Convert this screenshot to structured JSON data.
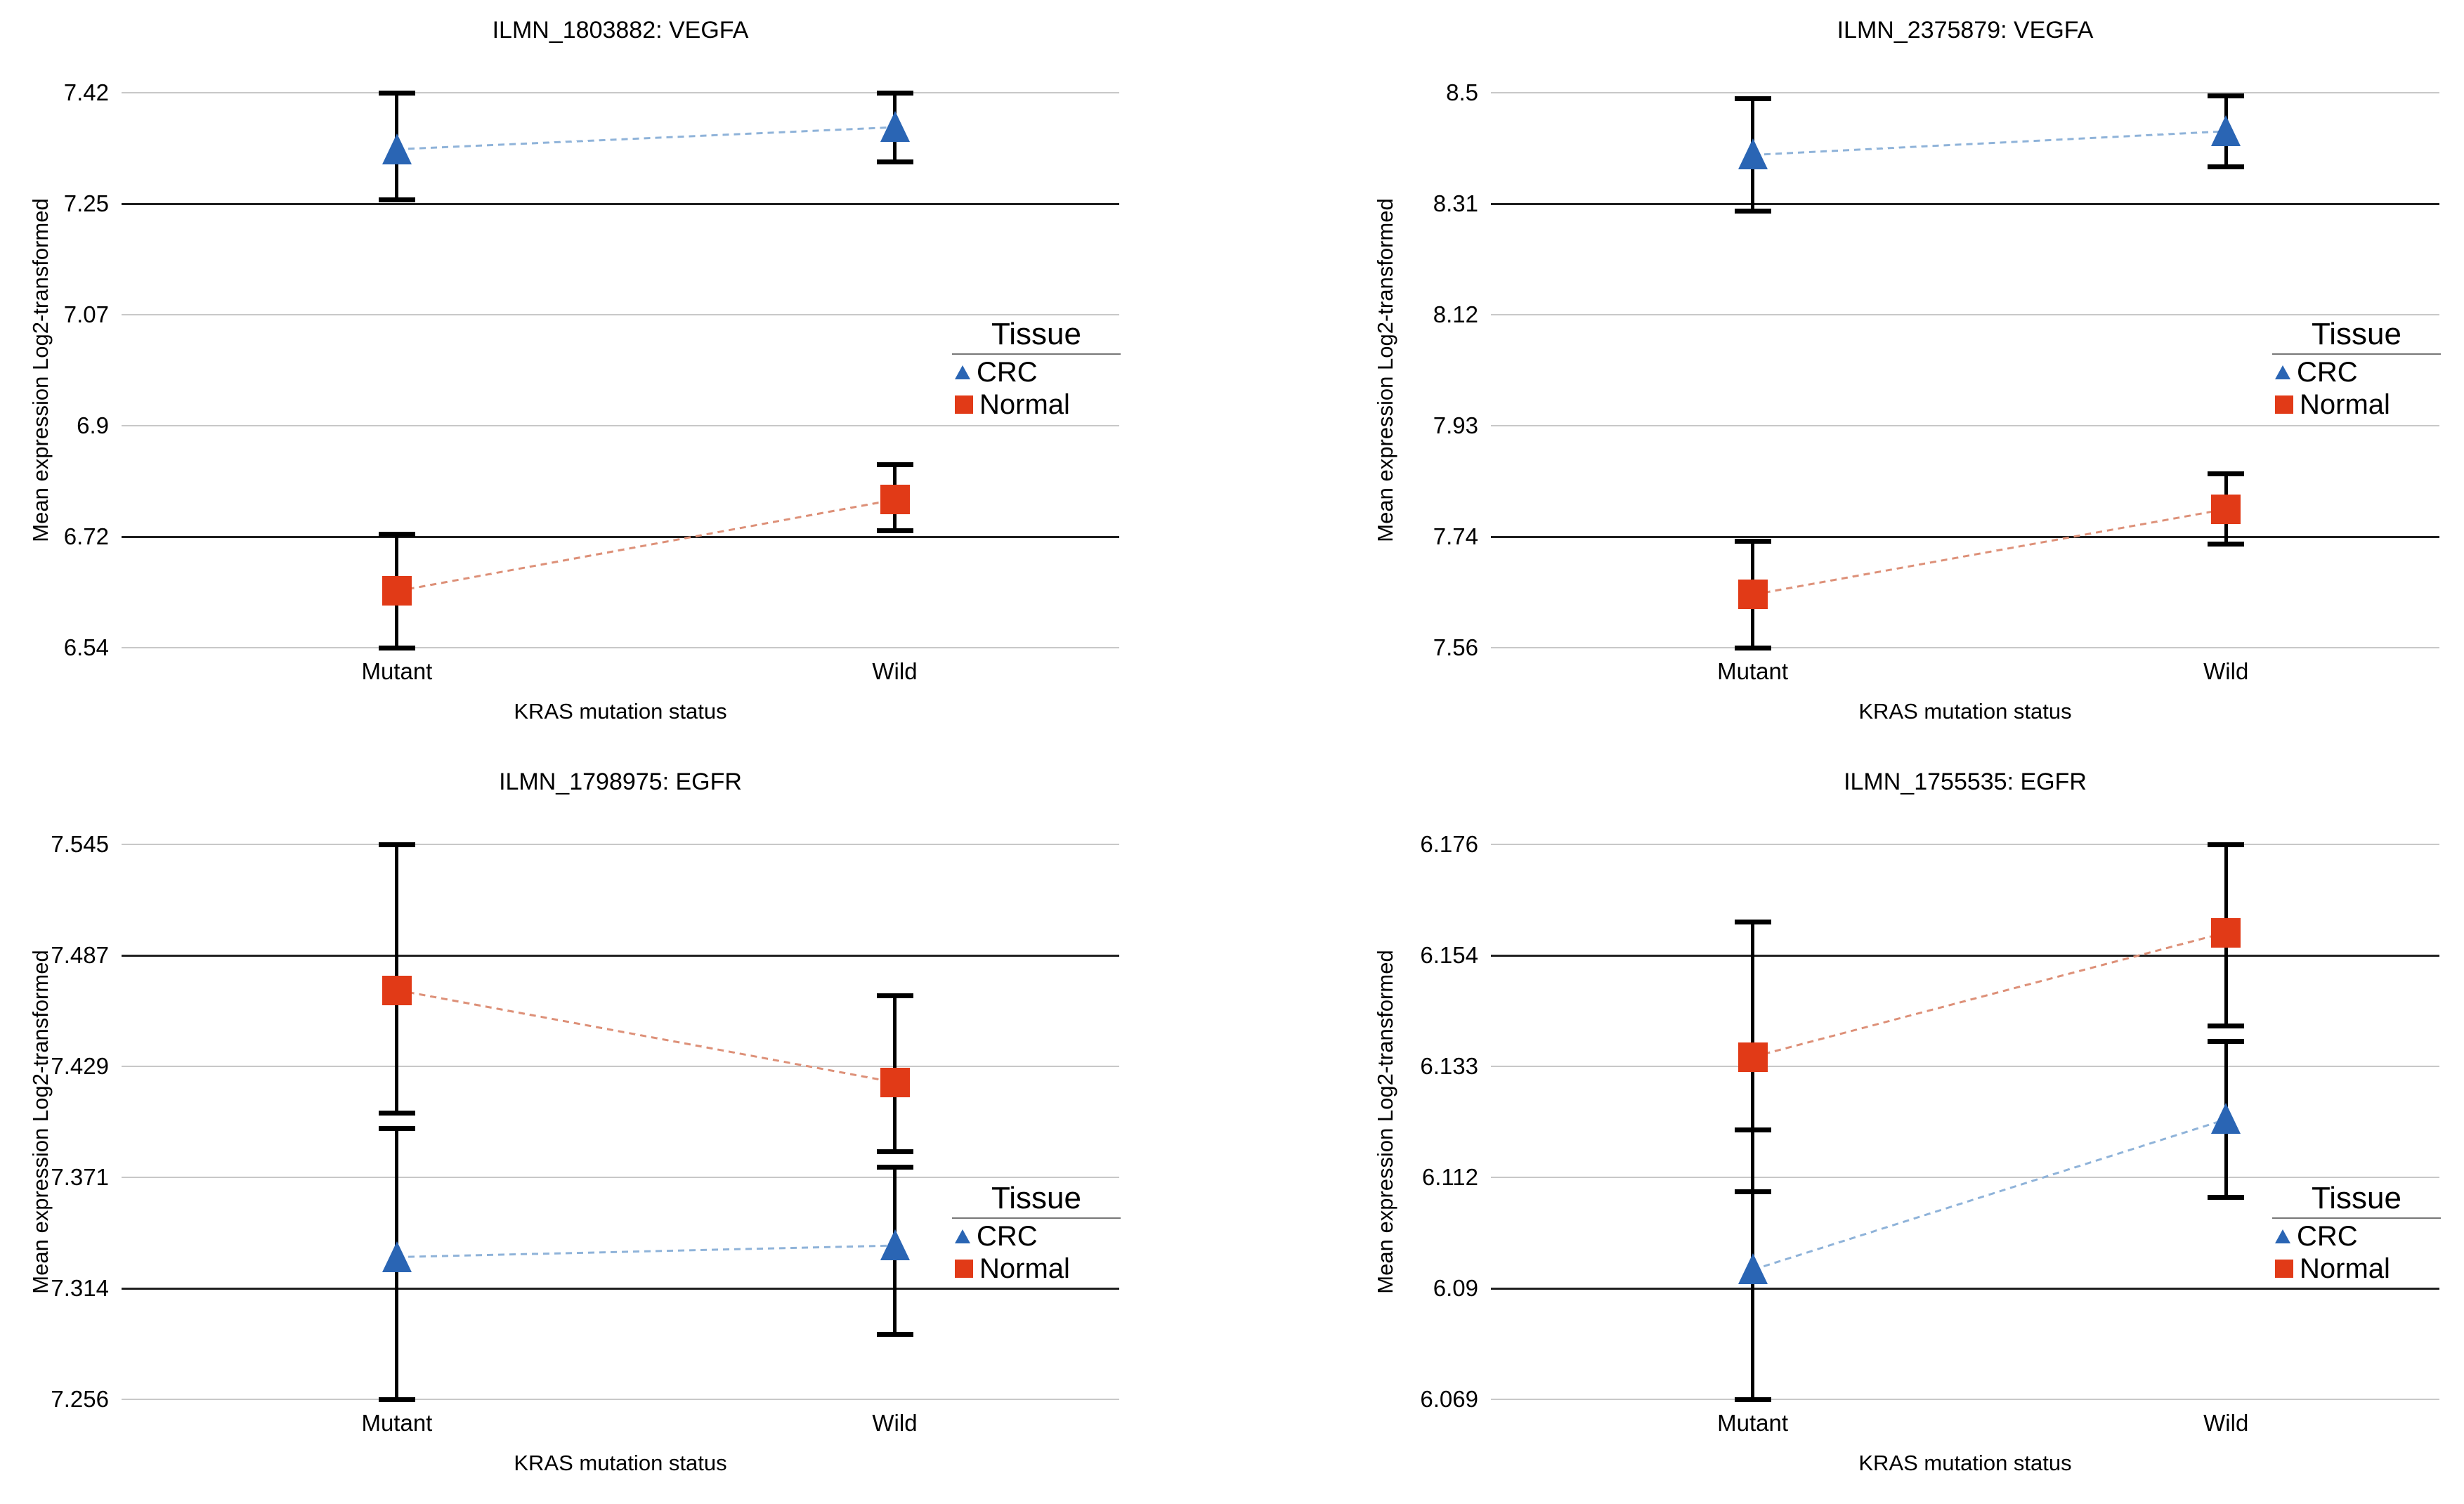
{
  "page": {
    "background": "#ffffff"
  },
  "colors": {
    "crc": "#2a65b4",
    "normal": "#e13a17",
    "crc_line": "#8fb3d9",
    "normal_line": "#dd9078",
    "grid_light": "#c8c8c8",
    "grid_dark": "#1f1f1f",
    "error_bar": "#000000"
  },
  "chart_data": [
    {
      "type": "line",
      "title": "ILMN_1803882: VEGFA",
      "xlabel": "KRAS mutation status",
      "ylabel": "Mean expression Log2-transformed",
      "categories": [
        "Mutant",
        "Wild"
      ],
      "yticks": [
        "7.42",
        "7.25",
        "7.07",
        "6.9",
        "6.72",
        "6.54"
      ],
      "ylim": [
        6.54,
        7.42
      ],
      "grid": "horizontal",
      "emphasized_gridlines": [
        1,
        4
      ],
      "error_bars": true,
      "connector_style": "dashed",
      "legend": {
        "title": "Tissue",
        "position": "right-middle",
        "entries": [
          {
            "label": "CRC",
            "marker": "triangle"
          },
          {
            "label": "Normal",
            "marker": "square"
          }
        ]
      },
      "series": [
        {
          "name": "CRC",
          "marker": "triangle",
          "means": [
            7.33,
            7.365
          ],
          "err_lo": [
            7.25,
            7.31
          ],
          "err_hi": [
            7.42,
            7.42
          ]
        },
        {
          "name": "Normal",
          "marker": "square",
          "means": [
            6.63,
            6.775
          ],
          "err_lo": [
            6.54,
            6.725
          ],
          "err_hi": [
            6.72,
            6.83
          ]
        }
      ]
    },
    {
      "type": "line",
      "title": "ILMN_2375879: VEGFA",
      "xlabel": "KRAS mutation status",
      "ylabel": "Mean expression Log2-transformed",
      "categories": [
        "Mutant",
        "Wild"
      ],
      "yticks": [
        "8.5",
        "8.31",
        "8.12",
        "7.93",
        "7.74",
        "7.56"
      ],
      "ylim": [
        7.56,
        8.5
      ],
      "grid": "horizontal",
      "emphasized_gridlines": [
        1,
        4
      ],
      "error_bars": true,
      "connector_style": "dashed",
      "legend": {
        "title": "Tissue",
        "position": "right-middle",
        "entries": [
          {
            "label": "CRC",
            "marker": "triangle"
          },
          {
            "label": "Normal",
            "marker": "square"
          }
        ]
      },
      "series": [
        {
          "name": "CRC",
          "marker": "triangle",
          "means": [
            8.395,
            8.435
          ],
          "err_lo": [
            8.3,
            8.375
          ],
          "err_hi": [
            8.49,
            8.495
          ]
        },
        {
          "name": "Normal",
          "marker": "square",
          "means": [
            7.65,
            7.795
          ],
          "err_lo": [
            7.56,
            7.735
          ],
          "err_hi": [
            7.74,
            7.855
          ]
        }
      ]
    },
    {
      "type": "line",
      "title": "ILMN_1798975: EGFR",
      "xlabel": "KRAS mutation status",
      "ylabel": "Mean expression Log2-transformed",
      "categories": [
        "Mutant",
        "Wild"
      ],
      "yticks": [
        "7.545",
        "7.487",
        "7.429",
        "7.371",
        "7.314",
        "7.256"
      ],
      "ylim": [
        7.256,
        7.545
      ],
      "grid": "horizontal",
      "emphasized_gridlines": [
        1,
        4
      ],
      "error_bars": true,
      "connector_style": "dashed",
      "legend": {
        "title": "Tissue",
        "position": "right-lower",
        "entries": [
          {
            "label": "CRC",
            "marker": "triangle"
          },
          {
            "label": "Normal",
            "marker": "square"
          }
        ]
      },
      "series": [
        {
          "name": "CRC",
          "marker": "triangle",
          "means": [
            7.33,
            7.336
          ],
          "err_lo": [
            7.256,
            7.29
          ],
          "err_hi": [
            7.397,
            7.377
          ]
        },
        {
          "name": "Normal",
          "marker": "square",
          "means": [
            7.469,
            7.421
          ],
          "err_lo": [
            7.405,
            7.385
          ],
          "err_hi": [
            7.545,
            7.466
          ]
        }
      ]
    },
    {
      "type": "line",
      "title": "ILMN_1755535: EGFR",
      "xlabel": "KRAS mutation status",
      "ylabel": "Mean expression Log2-transformed",
      "categories": [
        "Mutant",
        "Wild"
      ],
      "yticks": [
        "6.176",
        "6.154",
        "6.133",
        "6.112",
        "6.09",
        "6.069"
      ],
      "ylim": [
        6.069,
        6.176
      ],
      "grid": "horizontal",
      "emphasized_gridlines": [
        1,
        4
      ],
      "error_bars": true,
      "connector_style": "dashed",
      "legend": {
        "title": "Tissue",
        "position": "right-lower",
        "entries": [
          {
            "label": "CRC",
            "marker": "triangle"
          },
          {
            "label": "Normal",
            "marker": "square"
          }
        ]
      },
      "series": [
        {
          "name": "CRC",
          "marker": "triangle",
          "means": [
            6.094,
            6.123
          ],
          "err_lo": [
            6.069,
            6.108
          ],
          "err_hi": [
            6.121,
            6.138
          ]
        },
        {
          "name": "Normal",
          "marker": "square",
          "means": [
            6.135,
            6.159
          ],
          "err_lo": [
            6.109,
            6.141
          ],
          "err_hi": [
            6.161,
            6.176
          ]
        }
      ]
    }
  ]
}
